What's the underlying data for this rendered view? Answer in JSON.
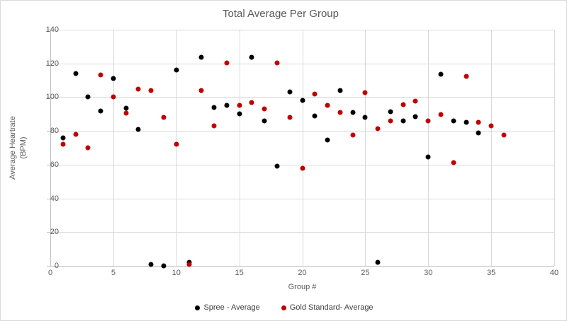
{
  "chart": {
    "title": "Total Average Per Group",
    "xlabel": "Group #",
    "ylabel_line1": "Average Heartrate",
    "ylabel_line2": "(BPM)"
  },
  "colors": {
    "spree_black": "#000000",
    "gold_red": "#c00000",
    "title_gray": "#595959",
    "gridline_gray": "#d9d9d9",
    "axis_gray": "#bfbfbf"
  },
  "chart_data": {
    "type": "scatter",
    "title": "Total Average Per Group",
    "xlabel": "Group #",
    "ylabel": "Average Heartrate (BPM)",
    "xlim": [
      0,
      40
    ],
    "ylim": [
      0,
      140
    ],
    "x_ticks": [
      0,
      5,
      10,
      15,
      20,
      25,
      30,
      35,
      40
    ],
    "y_ticks": [
      0,
      20,
      40,
      60,
      80,
      100,
      120,
      140
    ],
    "grid": true,
    "legend_position": "bottom",
    "series": [
      {
        "name": "Spree - Average",
        "color": "#000000",
        "points": [
          [
            1,
            76
          ],
          [
            2,
            114
          ],
          [
            3,
            100
          ],
          [
            4,
            92
          ],
          [
            5,
            111
          ],
          [
            6,
            93.5
          ],
          [
            7,
            81
          ],
          [
            8,
            1
          ],
          [
            9,
            0
          ],
          [
            10,
            116
          ],
          [
            11,
            2
          ],
          [
            12,
            123.5
          ],
          [
            13,
            94
          ],
          [
            14,
            95
          ],
          [
            15,
            90
          ],
          [
            16,
            123.5
          ],
          [
            17,
            86
          ],
          [
            18,
            59
          ],
          [
            19,
            103
          ],
          [
            20,
            98
          ],
          [
            21,
            89
          ],
          [
            22,
            74.5
          ],
          [
            23,
            104
          ],
          [
            24,
            91
          ],
          [
            25,
            88
          ],
          [
            26,
            2
          ],
          [
            27,
            91.5
          ],
          [
            28,
            86
          ],
          [
            29,
            88.5
          ],
          [
            30,
            64.5
          ],
          [
            31,
            113.5
          ],
          [
            32,
            86
          ],
          [
            33,
            85
          ],
          [
            34,
            79
          ]
        ]
      },
      {
        "name": "Gold Standard- Average",
        "color": "#c00000",
        "points": [
          [
            1,
            72
          ],
          [
            2,
            78
          ],
          [
            3,
            70
          ],
          [
            4,
            113
          ],
          [
            5,
            100
          ],
          [
            6,
            90.5
          ],
          [
            7,
            105
          ],
          [
            8,
            104
          ],
          [
            9,
            88
          ],
          [
            10,
            72
          ],
          [
            11,
            1
          ],
          [
            12,
            104
          ],
          [
            13,
            83
          ],
          [
            14,
            120.5
          ],
          [
            15,
            95
          ],
          [
            16,
            97
          ],
          [
            17,
            93
          ],
          [
            18,
            120.5
          ],
          [
            19,
            88
          ],
          [
            20,
            58
          ],
          [
            21,
            102
          ],
          [
            22,
            95
          ],
          [
            23,
            91
          ],
          [
            24,
            77.5
          ],
          [
            25,
            102.5
          ],
          [
            26,
            81.5
          ],
          [
            27,
            86
          ],
          [
            28,
            95.5
          ],
          [
            29,
            97.5
          ],
          [
            30,
            86
          ],
          [
            31,
            89.5
          ],
          [
            32,
            61
          ],
          [
            33,
            112.5
          ],
          [
            34,
            85
          ],
          [
            35,
            83
          ],
          [
            36,
            77.5
          ]
        ]
      }
    ]
  }
}
